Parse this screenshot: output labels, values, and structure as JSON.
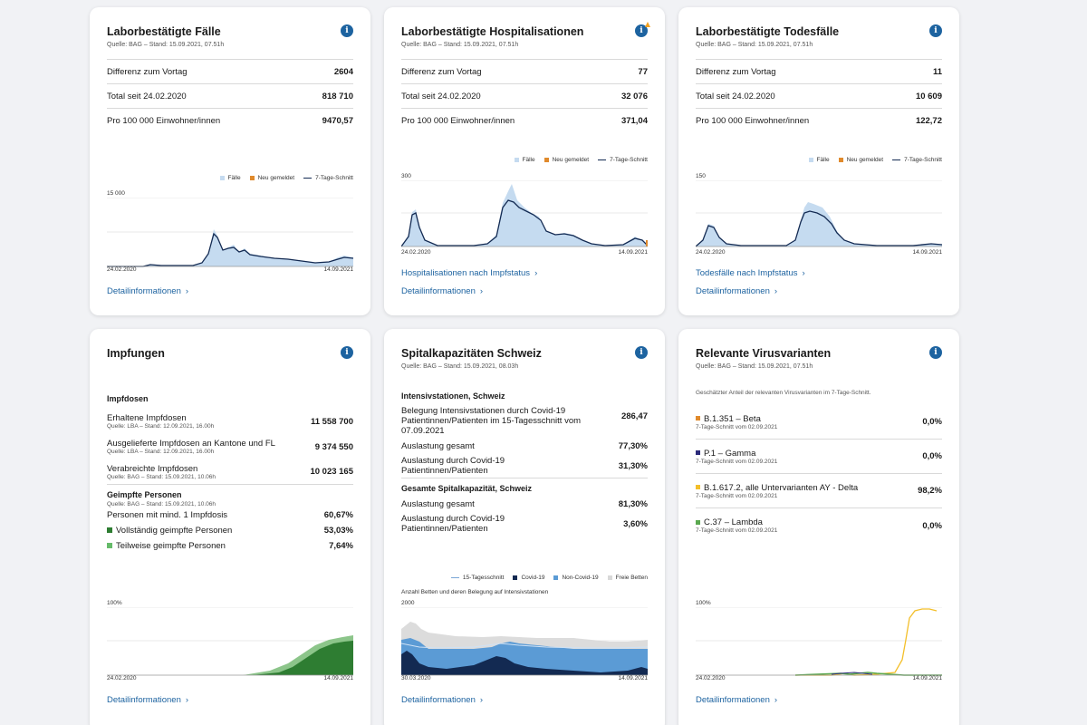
{
  "cards": {
    "cases": {
      "title": "Laborbestätigte Fälle",
      "source": "Quelle: BAG – Stand: 15.09.2021, 07.51h",
      "rows": [
        {
          "label": "Differenz zum Vortag",
          "value": "2604"
        },
        {
          "label": "Total seit 24.02.2020",
          "value": "818 710"
        },
        {
          "label": "Pro 100 000 Einwohner/innen",
          "value": "9470,57"
        }
      ],
      "legend": [
        "Fälle",
        "Neu gemeldet",
        "7-Tage-Schnitt"
      ],
      "ymax": "15 000",
      "xstart": "24.02.2020",
      "xend": "14.09.2021",
      "link": "Detailinformationen"
    },
    "hosp": {
      "title": "Laborbestätigte Hospitalisationen",
      "source": "Quelle: BAG – Stand: 15.09.2021, 07.51h",
      "rows": [
        {
          "label": "Differenz zum Vortag",
          "value": "77"
        },
        {
          "label": "Total seit 24.02.2020",
          "value": "32 076"
        },
        {
          "label": "Pro 100 000 Einwohner/innen",
          "value": "371,04"
        }
      ],
      "legend": [
        "Fälle",
        "Neu gemeldet",
        "7-Tage-Schnitt"
      ],
      "ymax": "300",
      "xstart": "24.02.2020",
      "xend": "14.09.2021",
      "link2": "Hospitalisationen nach Impfstatus",
      "link": "Detailinformationen"
    },
    "deaths": {
      "title": "Laborbestätigte Todesfälle",
      "source": "Quelle: BAG – Stand: 15.09.2021, 07.51h",
      "rows": [
        {
          "label": "Differenz zum Vortag",
          "value": "11"
        },
        {
          "label": "Total seit 24.02.2020",
          "value": "10 609"
        },
        {
          "label": "Pro 100 000 Einwohner/innen",
          "value": "122,72"
        }
      ],
      "legend": [
        "Fälle",
        "Neu gemeldet",
        "7-Tage-Schnitt"
      ],
      "ymax": "150",
      "xstart": "24.02.2020",
      "xend": "14.09.2021",
      "link2": "Todesfälle nach Impfstatus",
      "link": "Detailinformationen"
    },
    "vacc": {
      "title": "Impfungen",
      "doses_title": "Impfdosen",
      "doses": [
        {
          "label": "Erhaltene Impfdosen",
          "sub": "Quelle: LBA – Stand: 12.09.2021, 16.00h",
          "value": "11 558 700"
        },
        {
          "label": "Ausgelieferte Impfdosen an Kantone und FL",
          "sub": "Quelle: LBA – Stand: 12.09.2021, 16.00h",
          "value": "9 374 550"
        },
        {
          "label": "Verabreichte Impfdosen",
          "sub": "Quelle: BAG – Stand: 15.09.2021, 10.06h",
          "value": "10 023 165"
        }
      ],
      "persons_title": "Geimpfte Personen",
      "persons_sub": "Quelle: BAG – Stand: 15.09.2021, 10.06h",
      "persons": [
        {
          "label": "Personen mit mind. 1 Impfdosis",
          "value": "60,67%",
          "color": ""
        },
        {
          "label": "Vollständig geimpfte Personen",
          "value": "53,03%",
          "color": "#2e7d32"
        },
        {
          "label": "Teilweise geimpfte Personen",
          "value": "7,64%",
          "color": "#66bb6a"
        }
      ],
      "ymax": "100%",
      "xstart": "24.02.2020",
      "xend": "14.09.2021",
      "link": "Detailinformationen"
    },
    "hospcap": {
      "title": "Spitalkapazitäten Schweiz",
      "source": "Quelle: BAG – Stand: 15.09.2021, 08.03h",
      "icu_title": "Intensivstationen, Schweiz",
      "icu": [
        {
          "label": "Belegung Intensivstationen durch Covid-19 Patientinnen/Patienten im 15-Tagesschnitt vom 07.09.2021",
          "value": "286,47"
        },
        {
          "label": "Auslastung gesamt",
          "value": "77,30%"
        },
        {
          "label": "Auslastung durch Covid-19 Patientinnen/Patienten",
          "value": "31,30%"
        }
      ],
      "total_title": "Gesamte Spitalkapazität, Schweiz",
      "total": [
        {
          "label": "Auslastung gesamt",
          "value": "81,30%"
        },
        {
          "label": "Auslastung durch Covid-19 Patientinnen/Patienten",
          "value": "3,60%"
        }
      ],
      "legend": [
        "15-Tagesschnitt",
        "Covid-19",
        "Non-Covid-19",
        "Freie Betten"
      ],
      "chart_caption": "Anzahl Betten und deren Belegung auf Intensivstationen",
      "ymax": "2000",
      "xstart": "30.03.2020",
      "xend": "14.09.2021",
      "link": "Detailinformationen"
    },
    "variants": {
      "title": "Relevante Virusvarianten",
      "source": "Quelle: BAG – Stand: 15.09.2021, 07.51h",
      "intro": "Geschätzter Anteil der relevanten Virusvarianten im 7-Tage-Schnitt.",
      "items": [
        {
          "label": "B.1.351 – Beta",
          "sub": "7-Tage-Schnitt vom 02.09.2021",
          "value": "0,0%",
          "color": "#e08a2c"
        },
        {
          "label": "P.1 – Gamma",
          "sub": "7-Tage-Schnitt vom 02.09.2021",
          "value": "0,0%",
          "color": "#2b2a7a"
        },
        {
          "label": "B.1.617.2, alle Untervarianten AY - Delta",
          "sub": "7-Tage-Schnitt vom 02.09.2021",
          "value": "98,2%",
          "color": "#f3bf2a"
        },
        {
          "label": "C.37 – Lambda",
          "sub": "7-Tage-Schnitt vom 02.09.2021",
          "value": "0,0%",
          "color": "#5aa84f"
        }
      ],
      "ymax": "100%",
      "xstart": "24.02.2020",
      "xend": "14.09.2021",
      "link": "Detailinformationen"
    }
  },
  "colors": {
    "accent": "#1d63a0",
    "bar": "#c5dbf0",
    "line": "#132a52",
    "new": "#e08a2c"
  }
}
